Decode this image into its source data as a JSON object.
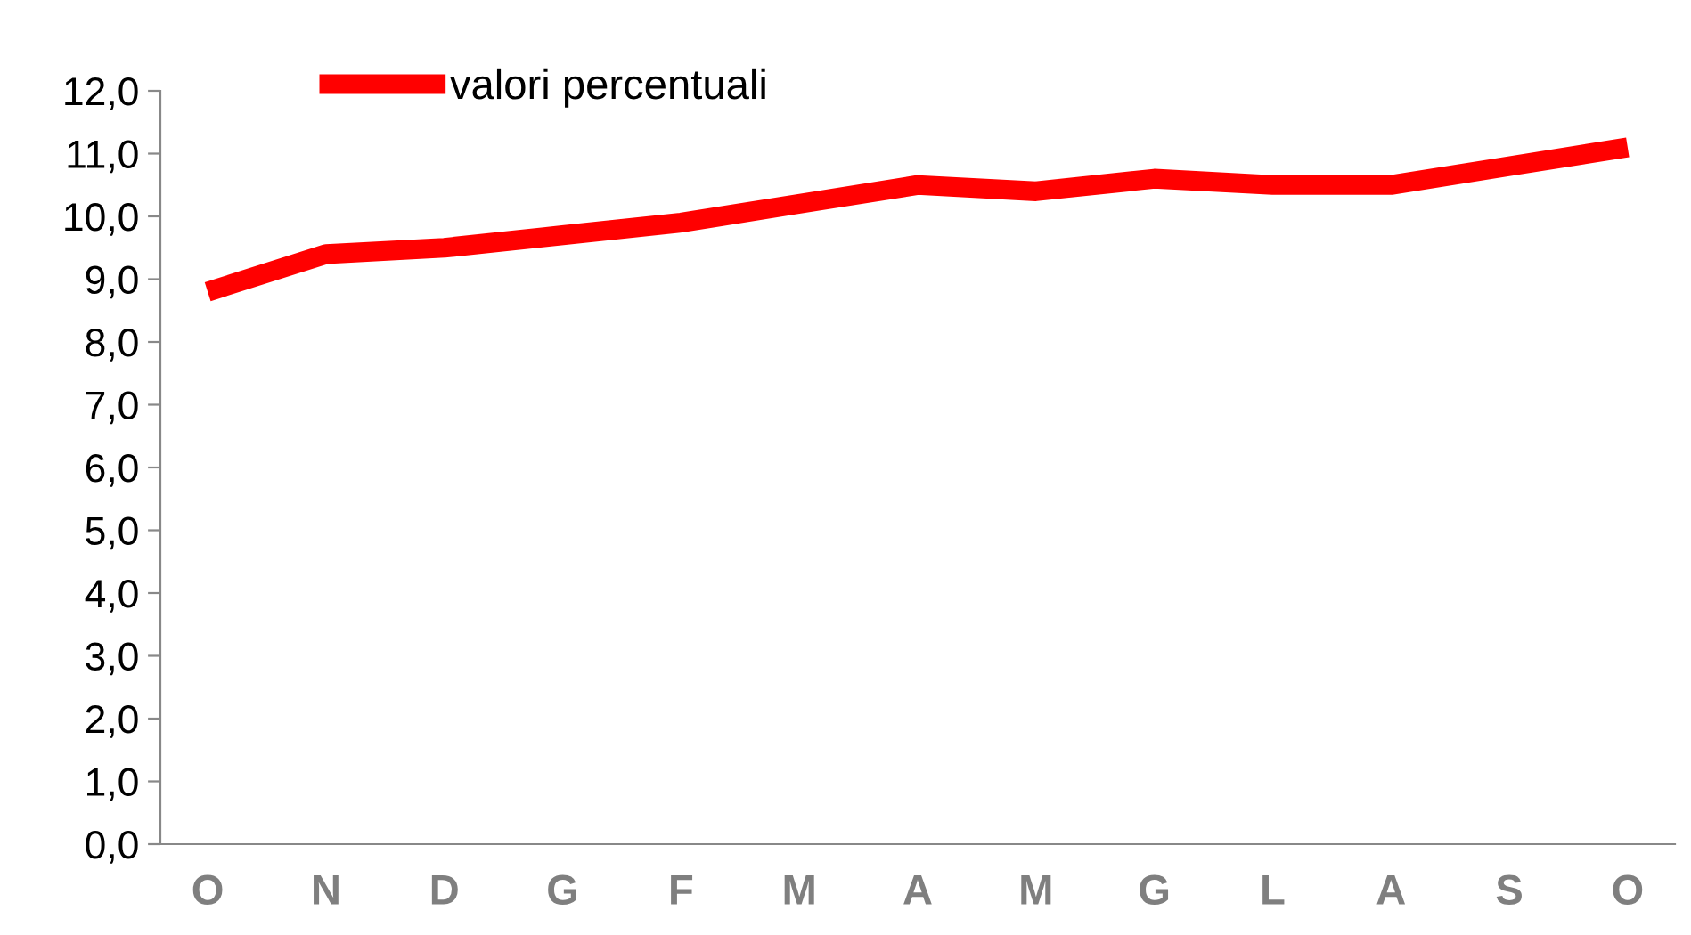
{
  "chart_data": {
    "type": "line",
    "categories": [
      "O",
      "N",
      "D",
      "G",
      "F",
      "M",
      "A",
      "M",
      "G",
      "L",
      "A",
      "S",
      "O"
    ],
    "series": [
      {
        "name": "valori percentuali",
        "color": "#ff0000",
        "values": [
          8.8,
          9.4,
          9.5,
          9.7,
          9.9,
          10.2,
          10.5,
          10.4,
          10.6,
          10.5,
          10.5,
          10.8,
          11.1
        ]
      }
    ],
    "ylim": [
      0,
      12
    ],
    "yticks": [
      {
        "value": 0,
        "label": "0,0"
      },
      {
        "value": 1,
        "label": "1,0"
      },
      {
        "value": 2,
        "label": "2,0"
      },
      {
        "value": 3,
        "label": "3,0"
      },
      {
        "value": 4,
        "label": "4,0"
      },
      {
        "value": 5,
        "label": "5,0"
      },
      {
        "value": 6,
        "label": "6,0"
      },
      {
        "value": 7,
        "label": "7,0"
      },
      {
        "value": 8,
        "label": "8,0"
      },
      {
        "value": 9,
        "label": "9,0"
      },
      {
        "value": 10,
        "label": "10,0"
      },
      {
        "value": 11,
        "label": "11,0"
      },
      {
        "value": 12,
        "label": "12,0"
      }
    ],
    "grid": false,
    "legend": "top left",
    "marker": "none",
    "line_style": "solid"
  }
}
